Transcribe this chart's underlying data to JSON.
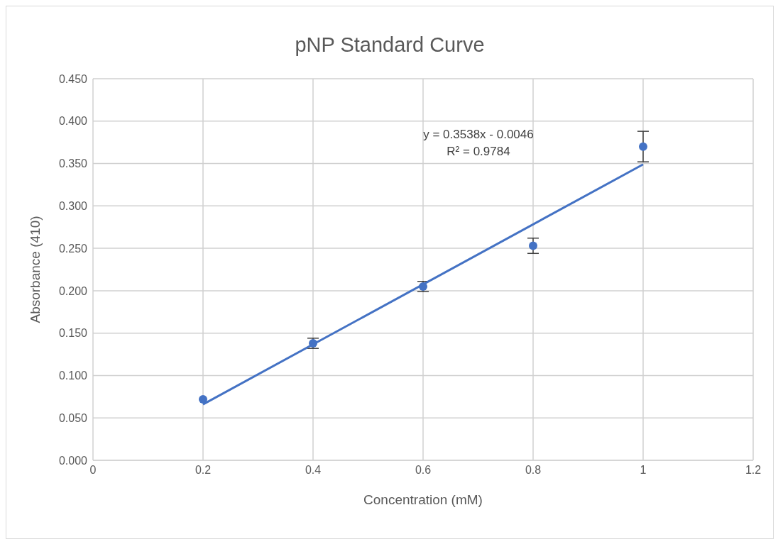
{
  "chart_data": {
    "type": "scatter",
    "title": "pNP Standard Curve",
    "xlabel": "Concentration (mM)",
    "ylabel": "Absorbance (410)",
    "xlim": [
      0,
      1.2
    ],
    "xticks": [
      0,
      0.2,
      0.4,
      0.6,
      0.8,
      1,
      1.2
    ],
    "ylim": [
      0,
      0.45
    ],
    "yticks": [
      {
        "value": 0,
        "label": "0.000"
      },
      {
        "value": 0.05,
        "label": "0.050"
      },
      {
        "value": 0.1,
        "label": "0.100"
      },
      {
        "value": 0.15,
        "label": "0.150"
      },
      {
        "value": 0.2,
        "label": "0.200"
      },
      {
        "value": 0.25,
        "label": "0.250"
      },
      {
        "value": 0.3,
        "label": "0.300"
      },
      {
        "value": 0.35,
        "label": "0.350"
      },
      {
        "value": 0.4,
        "label": "0.400"
      },
      {
        "value": 0.45,
        "label": "0.450"
      }
    ],
    "grid": true,
    "marker": "circle",
    "series": [
      {
        "color": "#4472c4",
        "x": [
          0.2,
          0.4,
          0.6,
          0.8,
          1
        ],
        "values": [
          0.072,
          0.138,
          0.205,
          0.253,
          0.37
        ],
        "errors": [
          null,
          0.006,
          0.006,
          0.009,
          0.018
        ]
      },
      {
        "type": "line",
        "marker": "none",
        "color": "#4472c4",
        "x": [
          0.2,
          1
        ],
        "values": [
          0.066,
          0.349
        ]
      }
    ],
    "annotations": [
      "y = 0.3538x - 0.0046",
      "R² = 0.9784"
    ]
  }
}
